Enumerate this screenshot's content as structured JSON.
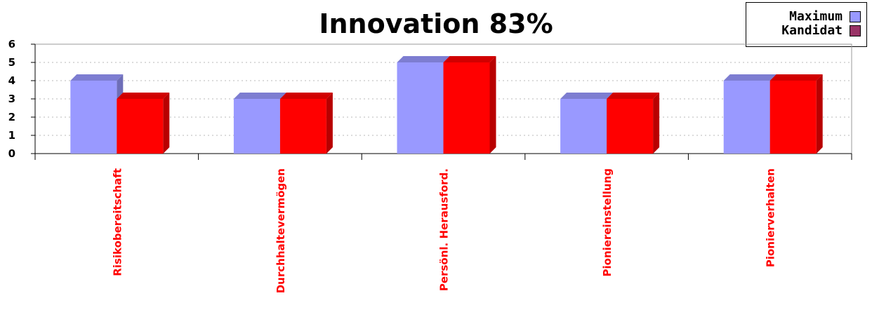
{
  "chart_data": {
    "type": "bar",
    "title": "Innovation 83%",
    "categories": [
      "Risikobereitschaft",
      "Durchhaltevermögen",
      "Persönl. Herausford.",
      "Pioniereinstellung",
      "Pionierverhalten"
    ],
    "series": [
      {
        "name": "Maximum",
        "values": [
          4,
          3,
          5,
          3,
          4
        ],
        "color": "#9999ff",
        "legend_color": "#9999ff"
      },
      {
        "name": "Kandidat",
        "values": [
          3,
          3,
          5,
          3,
          4
        ],
        "color": "#ff0000",
        "legend_color": "#993366"
      }
    ],
    "ylim": [
      0,
      6
    ],
    "yticks": [
      0,
      1,
      2,
      3,
      4,
      5,
      6
    ],
    "grid": true,
    "legend": "top-right",
    "category_label_color": "#ff0000"
  }
}
